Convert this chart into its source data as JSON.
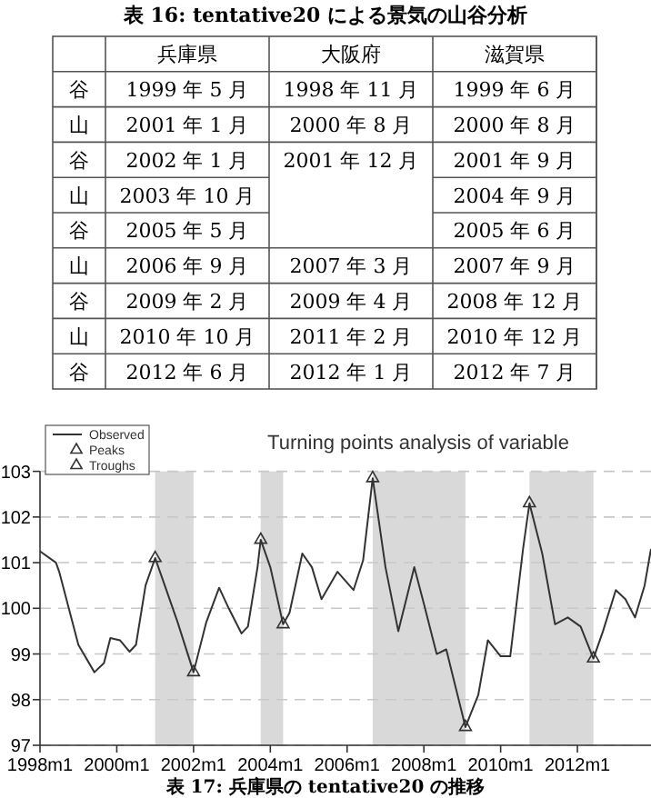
{
  "chart_data": [
    {
      "type": "other",
      "title": "表 16: tentative20 による景気の山谷分析",
      "categories": [
        "兵庫県",
        "大阪府",
        "滋賀県"
      ],
      "y_categories": [
        "谷",
        "山",
        "谷",
        "山",
        "谷",
        "山",
        "谷",
        "山",
        "谷"
      ],
      "cell_labels": [
        [
          "1999 年 5 月",
          "1998 年 11 月",
          "1999 年 6 月"
        ],
        [
          "2001 年 1 月",
          "2000 年 8 月",
          "2000 年 8 月"
        ],
        [
          "2002 年 1 月",
          "2001 年 12 月",
          "2001 年 9 月"
        ],
        [
          "2003 年 10 月",
          null,
          "2004 年 9 月"
        ],
        [
          "2005 年 5 月",
          null,
          "2005 年 6 月"
        ],
        [
          "2006 年 9 月",
          "2007 年 3 月",
          "2007 年 9 月"
        ],
        [
          "2009 年 2 月",
          "2009 年 4 月",
          "2008 年 12 月"
        ],
        [
          "2010 年 10 月",
          "2011 年 2 月",
          "2010 年 12 月"
        ],
        [
          "2012 年 6 月",
          "2012 年 1 月",
          "2012 年 7 月"
        ]
      ]
    },
    {
      "type": "line",
      "title": "Turning points analysis of variable",
      "annotations": [
        "表 17: 兵庫県の tentative20 の推移"
      ],
      "xlim": [
        "1998-01",
        "2013-12"
      ],
      "xticks": [
        {
          "value": "1998-01",
          "label": "1998m1"
        },
        {
          "value": "2000-01",
          "label": "2000m1"
        },
        {
          "value": "2002-01",
          "label": "2002m1"
        },
        {
          "value": "2004-01",
          "label": "2004m1"
        },
        {
          "value": "2006-01",
          "label": "2006m1"
        },
        {
          "value": "2008-01",
          "label": "2008m1"
        },
        {
          "value": "2010-01",
          "label": "2010m1"
        },
        {
          "value": "2012-01",
          "label": "2012m1"
        }
      ],
      "ylim": [
        97,
        103
      ],
      "yticks": [
        97,
        98,
        99,
        100,
        101,
        102,
        103
      ],
      "grid": "y",
      "legend": "top left",
      "bands": [
        {
          "axis": "x",
          "from": "2001-01",
          "to": "2002-01",
          "color": "#d9d9d9"
        },
        {
          "axis": "x",
          "from": "2003-10",
          "to": "2004-05",
          "color": "#d9d9d9"
        },
        {
          "axis": "x",
          "from": "2006-09",
          "to": "2009-02",
          "color": "#d9d9d9"
        },
        {
          "axis": "x",
          "from": "2010-10",
          "to": "2012-06",
          "color": "#d9d9d9"
        }
      ],
      "series": [
        {
          "name": "Observed",
          "type": "line",
          "color": "#333333",
          "marker": "none",
          "line_style": "solid",
          "x": [
            "1998-01",
            "1998-06",
            "1998-07",
            "1998-10",
            "1999-01",
            "1999-06",
            "1999-09",
            "1999-11",
            "2000-02",
            "2000-05",
            "2000-07",
            "2000-10",
            "2001-01",
            "2001-04",
            "2001-08",
            "2002-01",
            "2002-05",
            "2002-09",
            "2002-12",
            "2003-04",
            "2003-06",
            "2003-09",
            "2003-10",
            "2004-01",
            "2004-05",
            "2004-07",
            "2004-11",
            "2005-02",
            "2005-05",
            "2005-10",
            "2006-03",
            "2006-06",
            "2006-09",
            "2007-01",
            "2007-05",
            "2007-10",
            "2008-01",
            "2008-05",
            "2008-08",
            "2008-11",
            "2009-02",
            "2009-06",
            "2009-09",
            "2010-01",
            "2010-04",
            "2010-08",
            "2010-10",
            "2011-02",
            "2011-06",
            "2011-10",
            "2012-02",
            "2012-06",
            "2012-09",
            "2013-01",
            "2013-04",
            "2013-07",
            "2013-10",
            "2013-12"
          ],
          "values": [
            101.25,
            101.0,
            100.8,
            100.0,
            99.2,
            98.6,
            98.8,
            99.35,
            99.3,
            99.05,
            99.2,
            100.5,
            101.1,
            100.5,
            99.7,
            98.6,
            99.7,
            100.45,
            100.0,
            99.45,
            99.6,
            100.9,
            101.5,
            100.9,
            99.65,
            99.9,
            101.2,
            100.9,
            100.2,
            100.8,
            100.4,
            101.05,
            102.85,
            100.9,
            99.5,
            100.9,
            100.1,
            99.0,
            99.1,
            98.25,
            97.4,
            98.1,
            99.3,
            98.95,
            98.95,
            101.3,
            102.3,
            101.2,
            99.65,
            99.8,
            99.6,
            98.9,
            99.5,
            100.4,
            100.2,
            99.8,
            100.5,
            101.3
          ]
        },
        {
          "name": "Peaks",
          "type": "scatter",
          "color": "#333333",
          "marker": "triangle",
          "x": [
            "2001-01",
            "2003-10",
            "2006-09",
            "2010-10"
          ],
          "values": [
            101.1,
            101.5,
            102.85,
            102.3
          ]
        },
        {
          "name": "Troughs",
          "type": "scatter",
          "color": "#333333",
          "marker": "triangle",
          "x": [
            "2002-01",
            "2004-05",
            "2009-02",
            "2012-06"
          ],
          "values": [
            98.6,
            99.65,
            97.4,
            98.9
          ]
        }
      ]
    }
  ]
}
